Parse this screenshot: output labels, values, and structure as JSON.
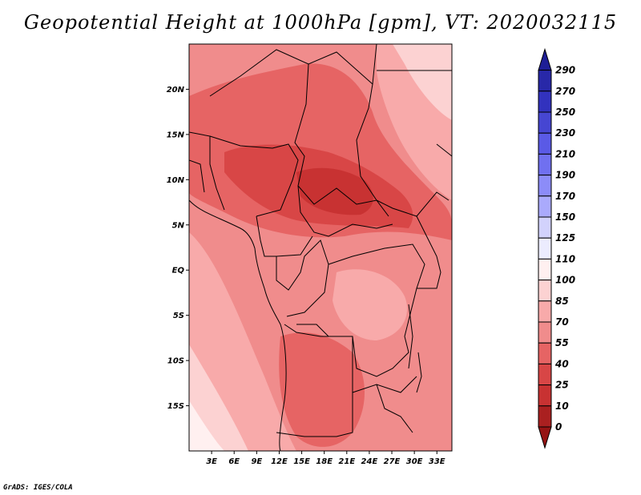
{
  "title": "Geopotential Height at 1000hPa [gpm], VT: 2020032115",
  "credit": "GrADS: IGES/COLA",
  "map": {
    "lat_labels": [
      "20N",
      "15N",
      "10N",
      "5N",
      "EQ",
      "5S",
      "10S",
      "15S"
    ],
    "lat_values": [
      20,
      15,
      10,
      5,
      0,
      -5,
      -10,
      -15
    ],
    "lon_labels": [
      "3E",
      "6E",
      "9E",
      "12E",
      "15E",
      "18E",
      "21E",
      "24E",
      "27E",
      "30E",
      "33E"
    ],
    "lon_values": [
      3,
      6,
      9,
      12,
      15,
      18,
      21,
      24,
      27,
      30,
      33
    ],
    "lon_range": [
      0,
      35
    ],
    "lat_range": [
      -20,
      25
    ]
  },
  "colorbar": {
    "labels": [
      "290",
      "270",
      "250",
      "230",
      "210",
      "190",
      "170",
      "150",
      "125",
      "110",
      "100",
      "85",
      "70",
      "55",
      "40",
      "25",
      "10",
      "0"
    ],
    "colors": [
      "#1e1e96",
      "#2828a8",
      "#3232be",
      "#4646d2",
      "#5a5ae6",
      "#7070f0",
      "#8c8cf8",
      "#aaaafc",
      "#d2d2fc",
      "#ececfe",
      "#fff0f0",
      "#fcd2d2",
      "#f8aaaa",
      "#f08c8c",
      "#e66464",
      "#d84646",
      "#c83232",
      "#aa2020",
      "#961414"
    ]
  }
}
